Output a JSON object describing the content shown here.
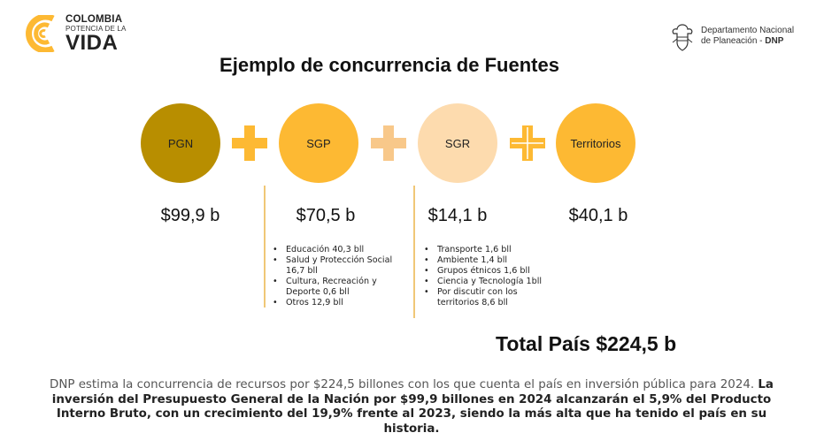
{
  "header": {
    "logo_line1": "COLOMBIA",
    "logo_line2": "POTENCIA DE LA",
    "logo_line3": "VIDA",
    "dnp_line1": "Departamento Nacional",
    "dnp_line2_prefix": "de Planeación - ",
    "dnp_line2_bold": "DNP"
  },
  "title": "Ejemplo de concurrencia de Fuentes",
  "sources": [
    {
      "label": "PGN",
      "amount": "$99,9 b",
      "color": "#B88E00"
    },
    {
      "label": "SGP",
      "amount": "$70,5 b",
      "color": "#FDB933"
    },
    {
      "label": "SGR",
      "amount": "$14,1 b",
      "color": "#FDDBAE"
    },
    {
      "label": "Territorios",
      "amount": "$40,1 b",
      "color": "#FDB933"
    }
  ],
  "sgp_details": [
    "Educación 40,3 bll",
    "Salud y Protección Social 16,7 bll",
    "Cultura, Recreación y Deporte 0,6 bll",
    "Otros 12,9 bll"
  ],
  "sgr_details": [
    "Transporte 1,6 bll",
    "Ambiente 1,4 bll",
    "Grupos étnicos 1,6 bll",
    "Ciencia y Tecnología 1bll",
    "Por discutir con los territorios 8,6 bll"
  ],
  "total": "Total País $224,5 b",
  "footer": {
    "normal": "DNP estima la concurrencia de recursos por $224,5 billones con los que cuenta el país en inversión pública para 2024. ",
    "bold": "La inversión del Presupuesto General de la Nación por $99,9 billones en 2024 alcanzarán el 5,9% del Producto Interno Bruto, con un crecimiento del 19,9% frente al 2023, siendo la más alta que ha tenido el país en su historia."
  },
  "colors": {
    "accent_yellow": "#FDB933",
    "pgn_gold": "#B88E00",
    "sgr_peach": "#FDDBAE",
    "plus_light": "#F8C88A",
    "divider": "#F0C777"
  }
}
